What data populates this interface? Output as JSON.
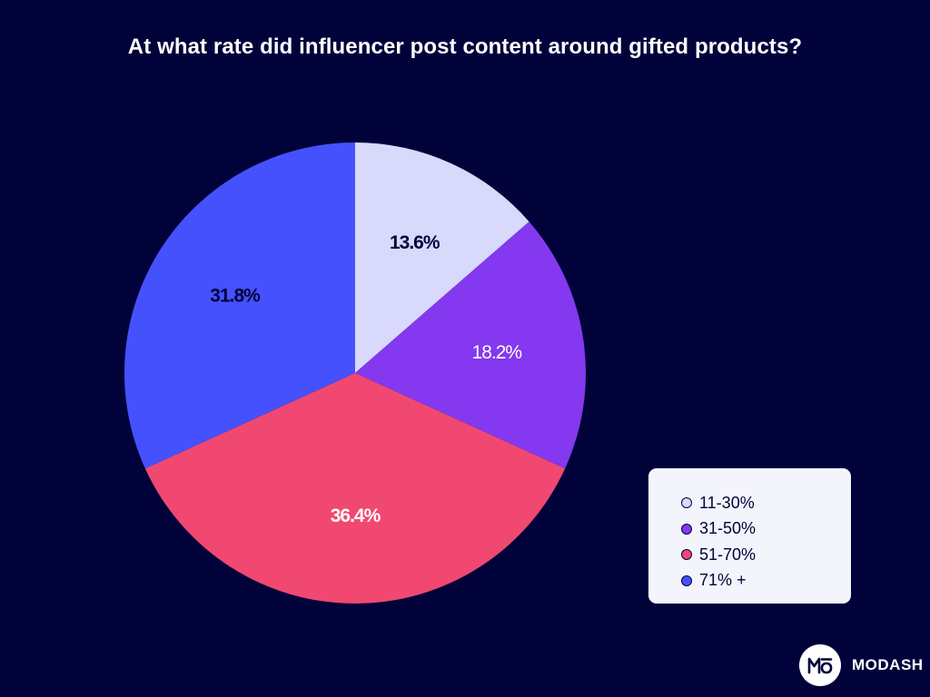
{
  "chart_data": {
    "type": "pie",
    "title": "At what rate did influencer post content around gifted products?",
    "categories": [
      "11-30%",
      "31-50%",
      "51-70%",
      "71% +"
    ],
    "values": [
      13.6,
      18.2,
      36.4,
      31.8
    ],
    "data_labels": [
      "13.6%",
      "18.2%",
      "36.4%",
      "31.8%"
    ],
    "colors": [
      "#d8d9fb",
      "#8438ef",
      "#f04870",
      "#4551fd"
    ],
    "label_colors": [
      "#01023a",
      "#ffffff",
      "#ffffff",
      "#01023a"
    ],
    "label_weights": [
      "bold",
      "normal",
      "bold",
      "bold"
    ],
    "legend_position": "bottom-right"
  },
  "brand": {
    "name": "MODASH",
    "logo_text": "MO"
  }
}
